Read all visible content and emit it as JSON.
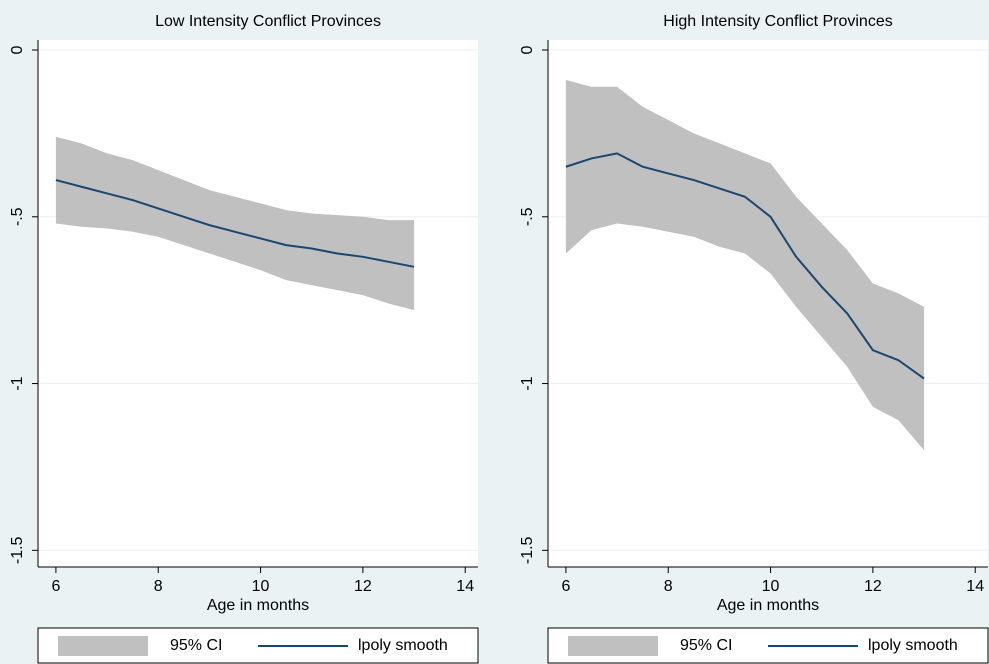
{
  "chart_data": [
    {
      "type": "line",
      "title": "Low Intensity Conflict Provinces",
      "xlabel": "Age in months",
      "x": [
        6,
        6.5,
        7,
        7.5,
        8,
        8.5,
        9,
        9.5,
        10,
        10.5,
        11,
        11.5,
        12,
        12.5,
        13
      ],
      "series": [
        {
          "name": "95% CI",
          "type": "band",
          "color": "#c0c0c0",
          "upper": [
            -0.26,
            -0.28,
            -0.31,
            -0.33,
            -0.36,
            -0.39,
            -0.42,
            -0.44,
            -0.46,
            -0.48,
            -0.49,
            -0.495,
            -0.5,
            -0.51,
            -0.51
          ],
          "lower": [
            -0.52,
            -0.53,
            -0.535,
            -0.545,
            -0.56,
            -0.585,
            -0.61,
            -0.635,
            -0.66,
            -0.69,
            -0.705,
            -0.72,
            -0.735,
            -0.76,
            -0.78
          ]
        },
        {
          "name": "lpoly smooth",
          "type": "line",
          "color": "#1a476f",
          "values": [
            -0.39,
            -0.41,
            -0.43,
            -0.45,
            -0.475,
            -0.5,
            -0.525,
            -0.545,
            -0.565,
            -0.585,
            -0.595,
            -0.61,
            -0.62,
            -0.635,
            -0.65
          ]
        }
      ],
      "xlim": [
        5.65,
        14.25
      ],
      "xticks": [
        6,
        8,
        10,
        12,
        14
      ],
      "ylim": [
        -1.55,
        0.03
      ],
      "yticks": [
        0,
        {
          "value": -0.5,
          "label": "-.5"
        },
        -1,
        -1.5
      ],
      "grid": true,
      "legend": "bottom"
    },
    {
      "type": "line",
      "title": "High Intensity Conflict Provinces",
      "xlabel": "Age in months",
      "x": [
        6,
        6.5,
        7,
        7.5,
        8,
        8.5,
        9,
        9.5,
        10,
        10.5,
        11,
        11.5,
        12,
        12.5,
        13
      ],
      "series": [
        {
          "name": "95% CI",
          "type": "band",
          "color": "#c0c0c0",
          "upper": [
            -0.09,
            -0.11,
            -0.11,
            -0.17,
            -0.21,
            -0.25,
            -0.28,
            -0.31,
            -0.34,
            -0.44,
            -0.52,
            -0.6,
            -0.7,
            -0.73,
            -0.77
          ],
          "lower": [
            -0.61,
            -0.54,
            -0.52,
            -0.53,
            -0.545,
            -0.56,
            -0.59,
            -0.61,
            -0.67,
            -0.77,
            -0.86,
            -0.95,
            -1.07,
            -1.11,
            -1.2
          ]
        },
        {
          "name": "lpoly smooth",
          "type": "line",
          "color": "#1a476f",
          "values": [
            -0.35,
            -0.325,
            -0.31,
            -0.35,
            -0.37,
            -0.39,
            -0.415,
            -0.44,
            -0.5,
            -0.62,
            -0.71,
            -0.79,
            -0.9,
            -0.93,
            -0.985
          ]
        }
      ],
      "xlim": [
        5.65,
        14.25
      ],
      "xticks": [
        6,
        8,
        10,
        12,
        14
      ],
      "ylim": [
        -1.55,
        0.03
      ],
      "yticks": [
        0,
        {
          "value": -0.5,
          "label": "-.5"
        },
        -1,
        -1.5
      ],
      "grid": true,
      "legend": "bottom"
    }
  ]
}
